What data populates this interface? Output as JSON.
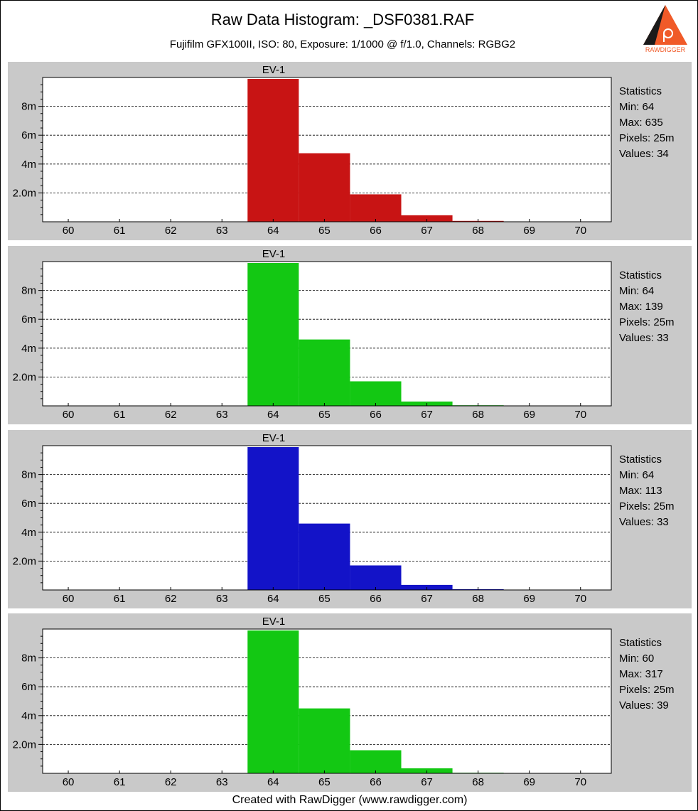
{
  "title": "Raw Data Histogram: _DSF0381.RAF",
  "subtitle": "Fujifilm GFX100II, ISO: 80, Exposure: 1/1000 @ f/1.0, Channels: RGBG2",
  "logo_text": "RAWDIGGER",
  "footer": "Created with RawDigger (www.rawdigger.com)",
  "colors": {
    "panel_bg": "#c9c9c9",
    "plot_bg": "#ffffff",
    "red": "#c81414",
    "green": "#13c813",
    "blue": "#1313c8",
    "logo_orange": "#f05a28"
  },
  "chart_data": [
    {
      "type": "bar",
      "channel": "R",
      "annotation": "EV-1",
      "x": [
        60,
        61,
        62,
        63,
        64,
        65,
        66,
        67,
        68,
        69,
        70
      ],
      "values": [
        0,
        0,
        0,
        0,
        9900000,
        4750000,
        1900000,
        450000,
        60000,
        0,
        0
      ],
      "xlim": [
        59.5,
        70.6
      ],
      "ylim": [
        0,
        10000000
      ],
      "yticks": [
        {
          "v": 2000000,
          "label": "2.0m"
        },
        {
          "v": 4000000,
          "label": "4m"
        },
        {
          "v": 6000000,
          "label": "6m"
        },
        {
          "v": 8000000,
          "label": "8m"
        }
      ],
      "color": "#c81414",
      "grid": "y-dashed",
      "statistics": {
        "heading": "Statistics",
        "min": "Min: 64",
        "max": "Max: 635",
        "pixels": "Pixels: 25m",
        "values": "Values: 34"
      }
    },
    {
      "type": "bar",
      "channel": "G",
      "annotation": "EV-1",
      "x": [
        60,
        61,
        62,
        63,
        64,
        65,
        66,
        67,
        68,
        69,
        70
      ],
      "values": [
        0,
        0,
        0,
        0,
        9900000,
        4600000,
        1700000,
        300000,
        40000,
        0,
        0
      ],
      "xlim": [
        59.5,
        70.6
      ],
      "ylim": [
        0,
        10000000
      ],
      "yticks": [
        {
          "v": 2000000,
          "label": "2.0m"
        },
        {
          "v": 4000000,
          "label": "4m"
        },
        {
          "v": 6000000,
          "label": "6m"
        },
        {
          "v": 8000000,
          "label": "8m"
        }
      ],
      "color": "#13c813",
      "grid": "y-dashed",
      "statistics": {
        "heading": "Statistics",
        "min": "Min: 64",
        "max": "Max: 139",
        "pixels": "Pixels: 25m",
        "values": "Values: 33"
      }
    },
    {
      "type": "bar",
      "channel": "B",
      "annotation": "EV-1",
      "x": [
        60,
        61,
        62,
        63,
        64,
        65,
        66,
        67,
        68,
        69,
        70
      ],
      "values": [
        0,
        0,
        0,
        0,
        9900000,
        4600000,
        1700000,
        350000,
        50000,
        0,
        0
      ],
      "xlim": [
        59.5,
        70.6
      ],
      "ylim": [
        0,
        10000000
      ],
      "yticks": [
        {
          "v": 2000000,
          "label": "2.0m"
        },
        {
          "v": 4000000,
          "label": "4m"
        },
        {
          "v": 6000000,
          "label": "6m"
        },
        {
          "v": 8000000,
          "label": "8m"
        }
      ],
      "color": "#1313c8",
      "grid": "y-dashed",
      "statistics": {
        "heading": "Statistics",
        "min": "Min: 64",
        "max": "Max: 113",
        "pixels": "Pixels: 25m",
        "values": "Values: 33"
      }
    },
    {
      "type": "bar",
      "channel": "G2",
      "annotation": "EV-1",
      "x": [
        60,
        61,
        62,
        63,
        64,
        65,
        66,
        67,
        68,
        69,
        70
      ],
      "values": [
        0,
        0,
        0,
        0,
        9900000,
        4500000,
        1600000,
        350000,
        40000,
        0,
        0
      ],
      "xlim": [
        59.5,
        70.6
      ],
      "ylim": [
        0,
        10000000
      ],
      "yticks": [
        {
          "v": 2000000,
          "label": "2.0m"
        },
        {
          "v": 4000000,
          "label": "4m"
        },
        {
          "v": 6000000,
          "label": "6m"
        },
        {
          "v": 8000000,
          "label": "8m"
        }
      ],
      "color": "#13c813",
      "grid": "y-dashed",
      "statistics": {
        "heading": "Statistics",
        "min": "Min: 60",
        "max": "Max: 317",
        "pixels": "Pixels: 25m",
        "values": "Values: 39"
      }
    }
  ]
}
